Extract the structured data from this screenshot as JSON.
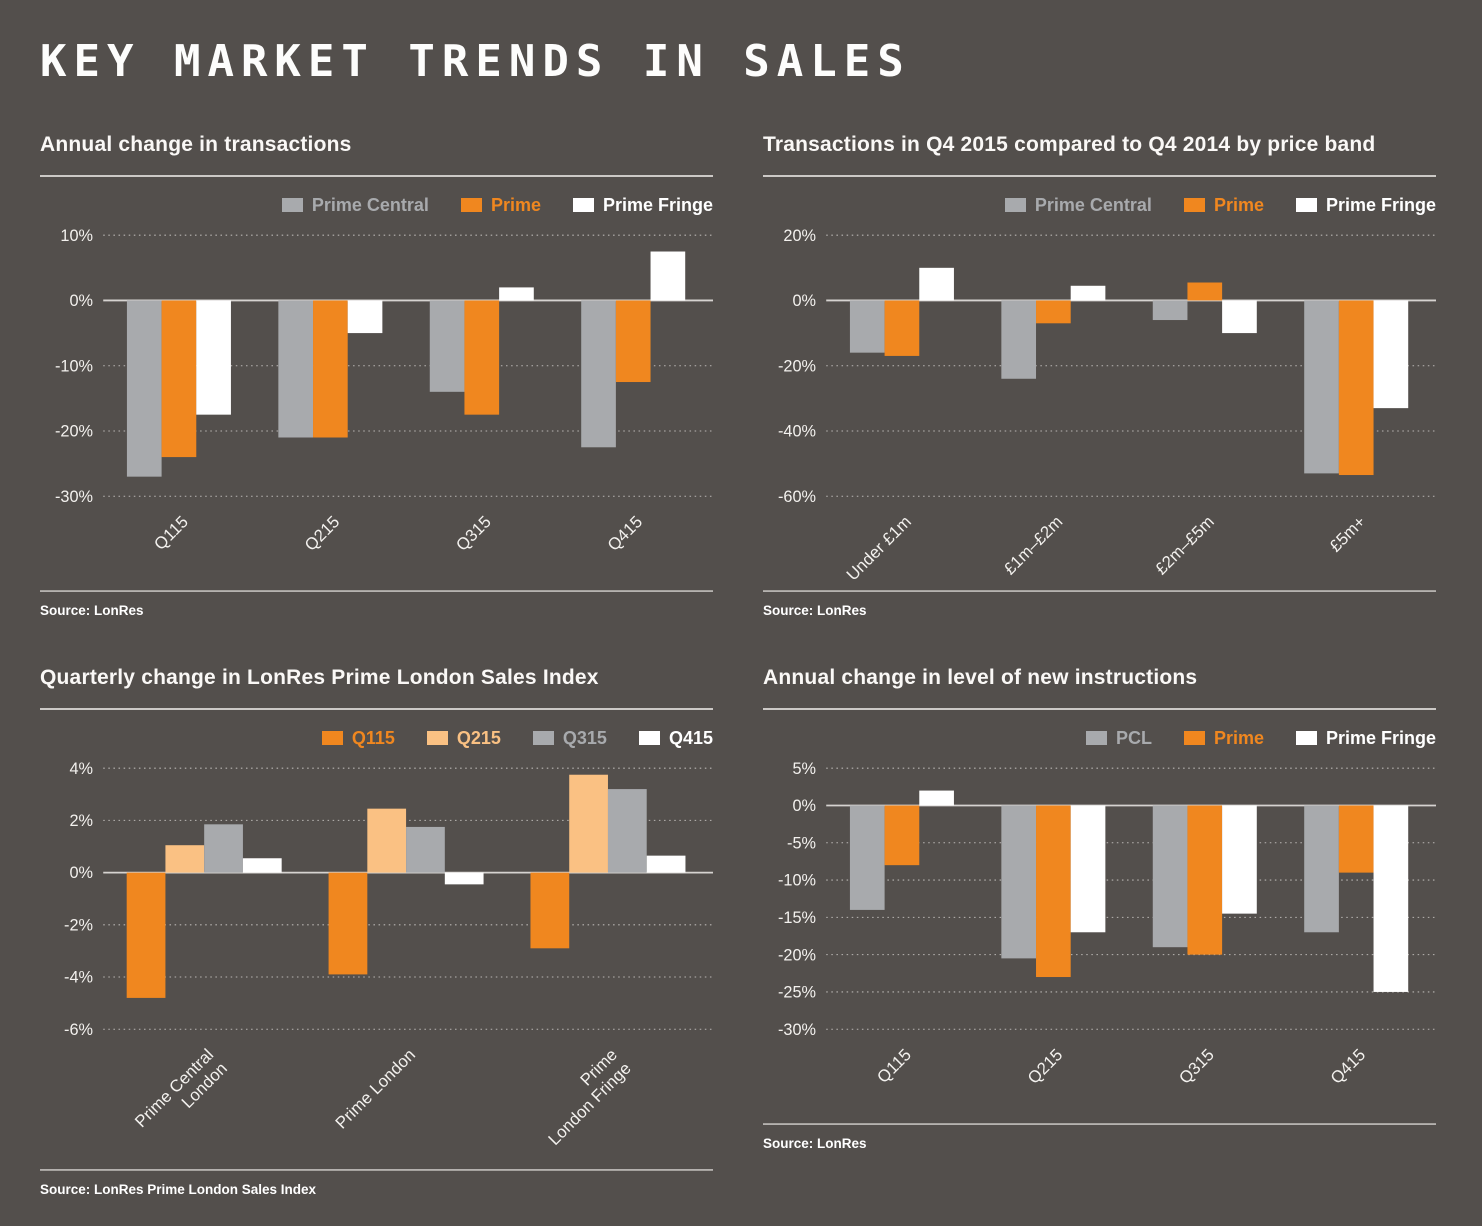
{
  "page": {
    "title": "KEY MARKET TRENDS IN SALES"
  },
  "colors": {
    "background": "#534f4c",
    "gray": "#a8aaad",
    "orange": "#f0871f",
    "light_orange": "#fac183",
    "white": "#ffffff",
    "grid_solid": "#d6d3d0",
    "grid_dotted": "#b9b6b3",
    "axis_text": "#f3f1ee"
  },
  "chart_data": [
    {
      "id": "annual-change-transactions",
      "type": "bar",
      "title": "Annual change in transactions",
      "source": "Source: LonRes",
      "categories": [
        "Q115",
        "Q215",
        "Q315",
        "Q415"
      ],
      "series": [
        {
          "name": "Prime Central",
          "color": "gray",
          "values": [
            -27,
            -21,
            -14,
            -22.5
          ]
        },
        {
          "name": "Prime",
          "color": "orange",
          "values": [
            -24,
            -21,
            -17.5,
            -12.5
          ]
        },
        {
          "name": "Prime Fringe",
          "color": "white",
          "values": [
            -17.5,
            -5,
            2,
            7.5
          ]
        }
      ],
      "ylim": [
        -30,
        10
      ],
      "yticks": [
        10,
        0,
        -10,
        -20,
        -30
      ],
      "ytick_suffix": "%",
      "legend_position": "top-right",
      "grid": "dotted"
    },
    {
      "id": "transactions-by-price-band",
      "type": "bar",
      "title": "Transactions in Q4 2015 compared to Q4 2014 by price band",
      "source": "Source: LonRes",
      "categories": [
        "Under £1m",
        "£1m–£2m",
        "£2m–£5m",
        "£5m+"
      ],
      "series": [
        {
          "name": "Prime Central",
          "color": "gray",
          "values": [
            -16,
            -24,
            -6,
            -53
          ]
        },
        {
          "name": "Prime",
          "color": "orange",
          "values": [
            -17,
            -7,
            5.5,
            -53.5
          ]
        },
        {
          "name": "Prime Fringe",
          "color": "white",
          "values": [
            10,
            4.5,
            -10,
            -33
          ]
        }
      ],
      "ylim": [
        -60,
        20
      ],
      "yticks": [
        20,
        0,
        -20,
        -40,
        -60
      ],
      "ytick_suffix": "%",
      "legend_position": "top-right",
      "grid": "dotted"
    },
    {
      "id": "quarterly-change-sales-index",
      "type": "bar",
      "title": "Quarterly change in LonRes Prime London Sales Index",
      "source": "Source: LonRes Prime London Sales Index",
      "categories": [
        "Prime Central\nLondon",
        "Prime London",
        "Prime\nLondon Fringe"
      ],
      "series": [
        {
          "name": "Q115",
          "color": "orange",
          "values": [
            -4.8,
            -3.9,
            -2.9
          ]
        },
        {
          "name": "Q215",
          "color": "light_orange",
          "values": [
            1.05,
            2.45,
            3.75
          ]
        },
        {
          "name": "Q315",
          "color": "gray",
          "values": [
            1.85,
            1.75,
            3.2
          ]
        },
        {
          "name": "Q415",
          "color": "white",
          "values": [
            0.55,
            -0.45,
            0.65
          ]
        }
      ],
      "ylim": [
        -6,
        4
      ],
      "yticks": [
        4,
        2,
        0,
        -2,
        -4,
        -6
      ],
      "ytick_suffix": "%",
      "legend_position": "top-right",
      "grid": "dotted"
    },
    {
      "id": "annual-change-new-instructions",
      "type": "bar",
      "title": "Annual change in level of new instructions",
      "source": "Source: LonRes",
      "categories": [
        "Q115",
        "Q215",
        "Q315",
        "Q415"
      ],
      "series": [
        {
          "name": "PCL",
          "color": "gray",
          "values": [
            -14,
            -20.5,
            -19,
            -17
          ]
        },
        {
          "name": "Prime",
          "color": "orange",
          "values": [
            -8,
            -23,
            -20,
            -9
          ]
        },
        {
          "name": "Prime Fringe",
          "color": "white",
          "values": [
            2,
            -17,
            -14.5,
            -25
          ]
        }
      ],
      "ylim": [
        -30,
        5
      ],
      "yticks": [
        5,
        0,
        -5,
        -10,
        -15,
        -20,
        -25,
        -30
      ],
      "ytick_suffix": "%",
      "legend_position": "top-right",
      "grid": "dotted"
    }
  ]
}
